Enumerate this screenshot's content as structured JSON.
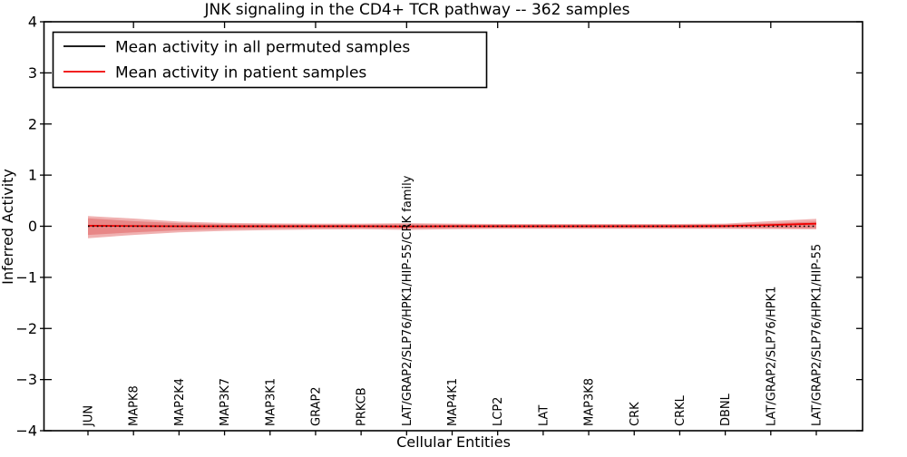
{
  "chart_data": {
    "type": "line",
    "title": "JNK signaling in the CD4+ TCR pathway -- 362 samples",
    "xlabel": "Cellular Entities",
    "ylabel": "Inferred Activity",
    "ylim": [
      -4,
      4
    ],
    "yticks": [
      4,
      3,
      2,
      1,
      0,
      -1,
      -2,
      -3,
      -4
    ],
    "grid": false,
    "categories": [
      "JUN",
      "MAPK8",
      "MAP2K4",
      "MAP3K7",
      "MAP3K1",
      "GRAP2",
      "PRKCB",
      "LAT/GRAP2/SLP76/HPK1/HIP-55/CRK family",
      "MAP4K1",
      "LCP2",
      "LAT",
      "MAP3K8",
      "CRK",
      "CRKL",
      "DBNL",
      "LAT/GRAP2/SLP76/HPK1",
      "LAT/GRAP2/SLP76/HPK1/HIP-55"
    ],
    "legend": {
      "position": "upper left",
      "entries": [
        {
          "label": "Mean activity in all permuted samples",
          "color": "#000000"
        },
        {
          "label": "Mean activity in patient samples",
          "color": "#f00000"
        }
      ]
    },
    "series": [
      {
        "name": "Mean activity in all permuted samples",
        "color": "#000000",
        "style": "dotted",
        "values": [
          0,
          0,
          0,
          0,
          0,
          0,
          0,
          0,
          0,
          0,
          0,
          0,
          0,
          0,
          0,
          0,
          0
        ]
      },
      {
        "name": "Mean activity in patient samples",
        "color": "#f00000",
        "style": "solid",
        "values": [
          0.01,
          0.005,
          0,
          0,
          0,
          0,
          0,
          -0.005,
          0,
          0,
          0,
          0,
          0,
          0,
          0.005,
          0.025,
          0.05
        ]
      }
    ],
    "bands": [
      {
        "name": "patient-activity-spread-outer",
        "color": "#d62728",
        "opacity": 0.36,
        "upper": [
          0.2,
          0.15,
          0.09,
          0.065,
          0.055,
          0.05,
          0.05,
          0.06,
          0.05,
          0.045,
          0.045,
          0.045,
          0.045,
          0.045,
          0.05,
          0.1,
          0.145
        ],
        "lower": [
          -0.235,
          -0.17,
          -0.12,
          -0.09,
          -0.075,
          -0.065,
          -0.06,
          -0.07,
          -0.06,
          -0.05,
          -0.05,
          -0.05,
          -0.05,
          -0.05,
          -0.05,
          -0.055,
          -0.06
        ]
      },
      {
        "name": "patient-activity-spread-inner",
        "color": "#d62728",
        "opacity": 0.3,
        "upper": [
          0.155,
          0.1,
          0.06,
          0.04,
          0.035,
          0.03,
          0.03,
          0.04,
          0.03,
          0.03,
          0.03,
          0.03,
          0.03,
          0.03,
          0.035,
          0.06,
          0.09
        ],
        "lower": [
          -0.17,
          -0.12,
          -0.08,
          -0.055,
          -0.045,
          -0.04,
          -0.035,
          -0.045,
          -0.035,
          -0.035,
          -0.035,
          -0.035,
          -0.035,
          -0.035,
          -0.035,
          -0.035,
          -0.04
        ]
      }
    ]
  }
}
